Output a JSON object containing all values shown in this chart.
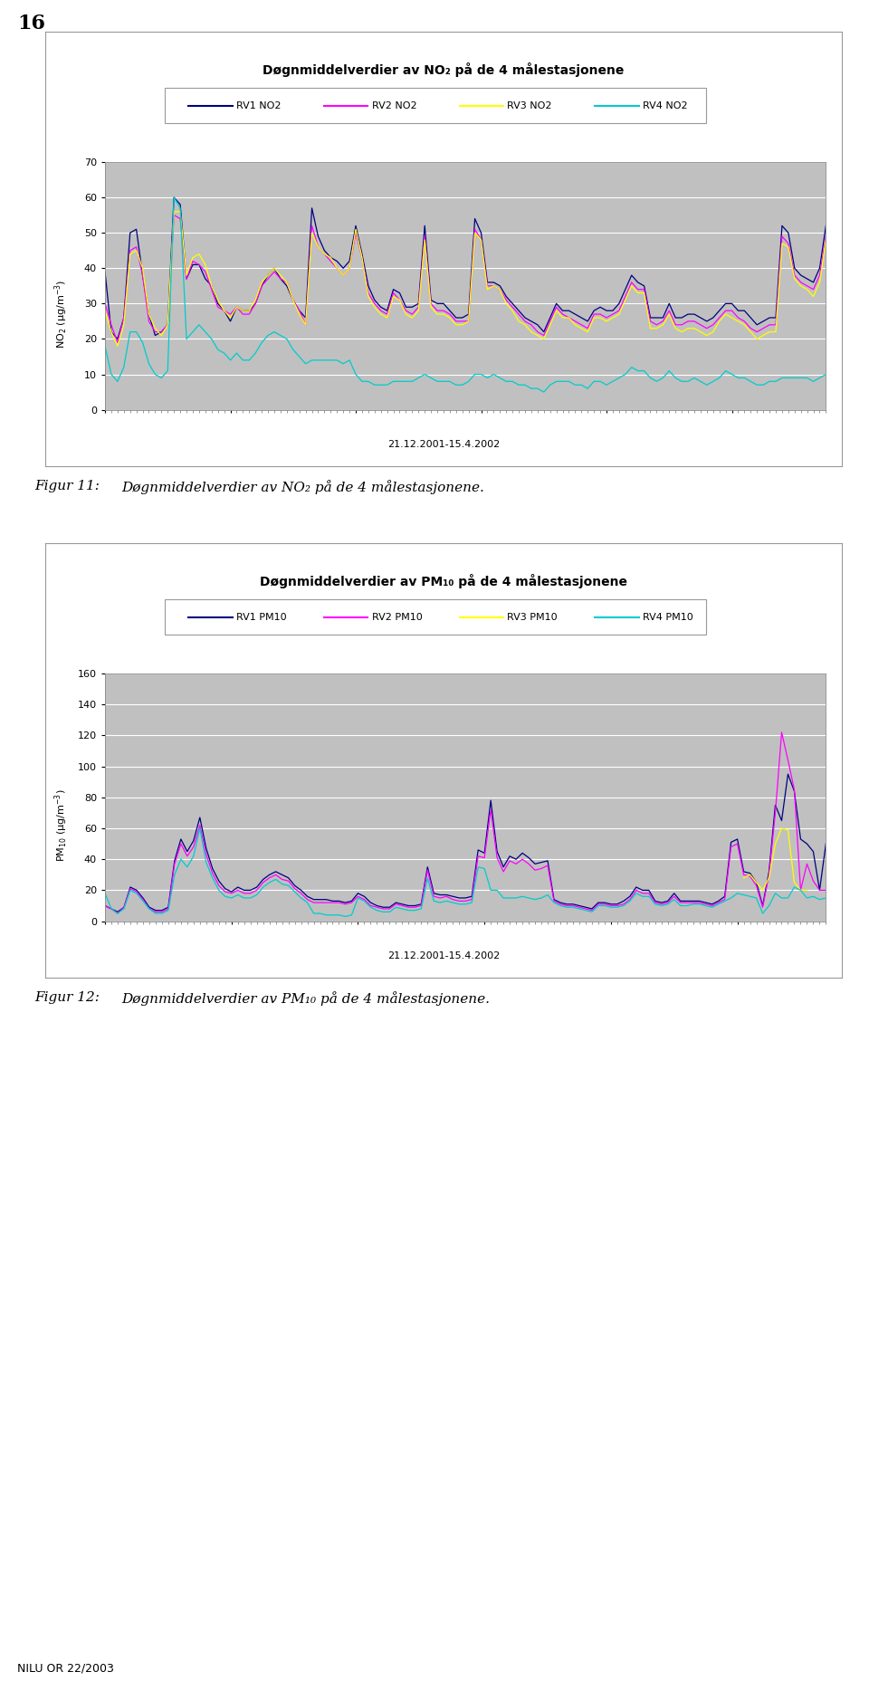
{
  "page_number": "16",
  "footer_text": "NILU OR 22/2003",
  "chart1": {
    "title": "Døgnmiddelverdier av NO₂ på de 4 målestasjonene",
    "ylabel": "NO₂ (µg/m⁻³)",
    "xlabel": "21.12.2001-15.4.2002",
    "ylim": [
      0,
      70
    ],
    "yticks": [
      0,
      10,
      20,
      30,
      40,
      50,
      60,
      70
    ],
    "legend_labels": [
      "RV1 NO2",
      "RV2 NO2",
      "RV3 NO2",
      "RV4 NO2"
    ],
    "colors": [
      "#000080",
      "#FF00FF",
      "#FFFF00",
      "#00CCCC"
    ],
    "bg_color": "#C0C0C0",
    "rv1": [
      39,
      22,
      20,
      26,
      50,
      51,
      38,
      27,
      21,
      22,
      24,
      60,
      58,
      37,
      41,
      41,
      37,
      35,
      30,
      28,
      25,
      29,
      28,
      28,
      30,
      35,
      38,
      40,
      37,
      35,
      31,
      28,
      26,
      57,
      49,
      45,
      43,
      42,
      40,
      42,
      52,
      44,
      35,
      31,
      29,
      28,
      34,
      33,
      29,
      29,
      30,
      52,
      31,
      30,
      30,
      28,
      26,
      26,
      27,
      54,
      50,
      36,
      36,
      35,
      32,
      30,
      28,
      26,
      25,
      24,
      22,
      26,
      30,
      28,
      28,
      27,
      26,
      25,
      28,
      29,
      28,
      28,
      30,
      34,
      38,
      36,
      35,
      26,
      26,
      26,
      30,
      26,
      26,
      27,
      27,
      26,
      25,
      26,
      28,
      30,
      30,
      28,
      28,
      26,
      24,
      25,
      26,
      26,
      52,
      50,
      40,
      38,
      37,
      36,
      40,
      52
    ],
    "rv2": [
      30,
      24,
      19,
      26,
      45,
      46,
      38,
      25,
      22,
      22,
      24,
      55,
      54,
      37,
      42,
      41,
      39,
      34,
      29,
      28,
      27,
      29,
      27,
      27,
      30,
      35,
      37,
      39,
      37,
      36,
      31,
      28,
      24,
      52,
      46,
      44,
      42,
      40,
      38,
      40,
      50,
      43,
      33,
      30,
      28,
      27,
      33,
      31,
      28,
      27,
      29,
      49,
      30,
      28,
      28,
      27,
      25,
      25,
      25,
      51,
      48,
      35,
      35,
      34,
      31,
      29,
      27,
      25,
      24,
      22,
      21,
      25,
      29,
      27,
      26,
      25,
      24,
      23,
      27,
      27,
      26,
      27,
      28,
      32,
      36,
      34,
      34,
      25,
      24,
      25,
      28,
      24,
      24,
      25,
      25,
      24,
      23,
      24,
      26,
      28,
      28,
      26,
      25,
      23,
      22,
      23,
      24,
      24,
      49,
      47,
      38,
      36,
      35,
      34,
      38,
      49
    ],
    "rv3": [
      28,
      22,
      18,
      24,
      44,
      45,
      40,
      27,
      23,
      21,
      24,
      56,
      56,
      38,
      43,
      44,
      41,
      35,
      31,
      28,
      26,
      29,
      28,
      28,
      31,
      36,
      38,
      40,
      38,
      36,
      31,
      27,
      24,
      50,
      46,
      44,
      43,
      40,
      38,
      40,
      51,
      43,
      32,
      29,
      27,
      26,
      32,
      31,
      27,
      26,
      28,
      48,
      29,
      27,
      27,
      26,
      24,
      24,
      25,
      50,
      48,
      34,
      35,
      34,
      30,
      28,
      25,
      24,
      22,
      21,
      20,
      24,
      28,
      26,
      26,
      24,
      23,
      22,
      26,
      26,
      25,
      26,
      27,
      31,
      35,
      33,
      33,
      23,
      23,
      24,
      27,
      23,
      22,
      23,
      23,
      22,
      21,
      22,
      25,
      27,
      26,
      25,
      24,
      22,
      20,
      21,
      22,
      22,
      47,
      46,
      37,
      35,
      34,
      32,
      36,
      48
    ],
    "rv4": [
      18,
      10,
      8,
      12,
      22,
      22,
      19,
      13,
      10,
      9,
      11,
      60,
      57,
      20,
      22,
      24,
      22,
      20,
      17,
      16,
      14,
      16,
      14,
      14,
      16,
      19,
      21,
      22,
      21,
      20,
      17,
      15,
      13,
      14,
      14,
      14,
      14,
      14,
      13,
      14,
      10,
      8,
      8,
      7,
      7,
      7,
      8,
      8,
      8,
      8,
      9,
      10,
      9,
      8,
      8,
      8,
      7,
      7,
      8,
      10,
      10,
      9,
      10,
      9,
      8,
      8,
      7,
      7,
      6,
      6,
      5,
      7,
      8,
      8,
      8,
      7,
      7,
      6,
      8,
      8,
      7,
      8,
      9,
      10,
      12,
      11,
      11,
      9,
      8,
      9,
      11,
      9,
      8,
      8,
      9,
      8,
      7,
      8,
      9,
      11,
      10,
      9,
      9,
      8,
      7,
      7,
      8,
      8,
      9,
      9,
      9,
      9,
      9,
      8,
      9,
      10
    ]
  },
  "chart2": {
    "title": "Døgnmiddelverdier av PM₁₀ på de 4 målestasjonene",
    "ylabel": "PM₁₀ (µg/m⁻³)",
    "xlabel": "21.12.2001-15.4.2002",
    "ylim": [
      0,
      160
    ],
    "yticks": [
      0,
      20,
      40,
      60,
      80,
      100,
      120,
      140,
      160
    ],
    "legend_labels": [
      "RV1 PM10",
      "RV2 PM10",
      "RV3 PM10",
      "RV4 PM10"
    ],
    "colors": [
      "#000080",
      "#FF00FF",
      "#FFFF00",
      "#00CCCC"
    ],
    "bg_color": "#C0C0C0",
    "rv1": [
      10,
      8,
      6,
      9,
      22,
      20,
      15,
      9,
      7,
      7,
      9,
      39,
      53,
      45,
      52,
      67,
      47,
      34,
      26,
      21,
      19,
      22,
      20,
      20,
      22,
      27,
      30,
      32,
      30,
      28,
      23,
      20,
      16,
      14,
      14,
      14,
      13,
      13,
      12,
      13,
      18,
      16,
      12,
      10,
      9,
      9,
      12,
      11,
      10,
      10,
      11,
      35,
      18,
      17,
      17,
      16,
      15,
      15,
      16,
      46,
      44,
      78,
      45,
      35,
      42,
      40,
      44,
      41,
      37,
      38,
      39,
      14,
      12,
      11,
      11,
      10,
      9,
      8,
      12,
      12,
      11,
      11,
      13,
      16,
      22,
      20,
      20,
      13,
      12,
      13,
      18,
      13,
      13,
      13,
      13,
      12,
      11,
      13,
      16,
      51,
      53,
      32,
      31,
      25,
      10,
      32,
      75,
      65,
      95,
      84,
      53,
      50,
      45,
      20,
      50
    ],
    "rv2": [
      10,
      8,
      5,
      9,
      21,
      19,
      14,
      8,
      6,
      6,
      8,
      37,
      50,
      42,
      48,
      62,
      43,
      31,
      23,
      19,
      18,
      20,
      18,
      18,
      20,
      25,
      28,
      30,
      27,
      26,
      21,
      18,
      14,
      12,
      12,
      12,
      12,
      12,
      11,
      12,
      16,
      14,
      10,
      9,
      8,
      8,
      11,
      10,
      9,
      9,
      10,
      33,
      16,
      15,
      16,
      14,
      13,
      13,
      14,
      42,
      41,
      72,
      41,
      32,
      39,
      37,
      40,
      37,
      33,
      34,
      36,
      13,
      11,
      10,
      10,
      9,
      8,
      7,
      11,
      11,
      10,
      10,
      11,
      14,
      20,
      18,
      18,
      12,
      11,
      12,
      16,
      12,
      12,
      12,
      12,
      11,
      10,
      12,
      14,
      48,
      50,
      30,
      29,
      23,
      9,
      30,
      70,
      122,
      104,
      85,
      20,
      37,
      26,
      20,
      20
    ],
    "rv3": [
      null,
      null,
      null,
      null,
      null,
      null,
      null,
      null,
      null,
      null,
      null,
      null,
      null,
      null,
      null,
      null,
      null,
      null,
      null,
      null,
      null,
      null,
      null,
      null,
      null,
      null,
      null,
      null,
      null,
      null,
      null,
      null,
      null,
      null,
      null,
      null,
      null,
      null,
      null,
      null,
      null,
      null,
      null,
      null,
      null,
      null,
      null,
      null,
      null,
      null,
      null,
      null,
      null,
      null,
      null,
      null,
      null,
      null,
      null,
      null,
      null,
      null,
      null,
      null,
      null,
      null,
      null,
      null,
      null,
      null,
      null,
      null,
      null,
      null,
      null,
      null,
      null,
      null,
      null,
      null,
      null,
      null,
      null,
      null,
      null,
      null,
      null,
      null,
      null,
      null,
      null,
      null,
      null,
      null,
      null,
      null,
      null,
      null,
      null,
      null,
      null,
      28,
      30,
      25,
      20,
      28,
      50,
      60,
      59,
      25,
      20,
      20
    ],
    "rv4": [
      18,
      8,
      5,
      8,
      20,
      18,
      13,
      8,
      5,
      5,
      7,
      30,
      40,
      35,
      42,
      60,
      38,
      28,
      20,
      16,
      15,
      17,
      15,
      15,
      17,
      22,
      25,
      27,
      24,
      23,
      19,
      15,
      12,
      5,
      5,
      4,
      4,
      4,
      3,
      4,
      15,
      13,
      9,
      7,
      6,
      6,
      9,
      8,
      7,
      7,
      8,
      28,
      13,
      12,
      13,
      12,
      11,
      11,
      12,
      35,
      34,
      20,
      20,
      15,
      15,
      15,
      16,
      15,
      14,
      15,
      17,
      12,
      10,
      9,
      9,
      8,
      7,
      6,
      10,
      10,
      9,
      9,
      10,
      13,
      18,
      16,
      16,
      11,
      10,
      11,
      14,
      10,
      10,
      11,
      11,
      10,
      9,
      11,
      13,
      15,
      18,
      17,
      16,
      15,
      5,
      10,
      18,
      15,
      15,
      22,
      20,
      15,
      16,
      14,
      15
    ]
  },
  "fig11_label": "Figur 11:",
  "fig11_text": "Døgnmiddelverdier av NO₂ på de 4 målestasjonene.",
  "fig12_label": "Figur 12:",
  "fig12_text": "Døgnmiddelverdier av PM₁₀ på de 4 målestasjonene."
}
